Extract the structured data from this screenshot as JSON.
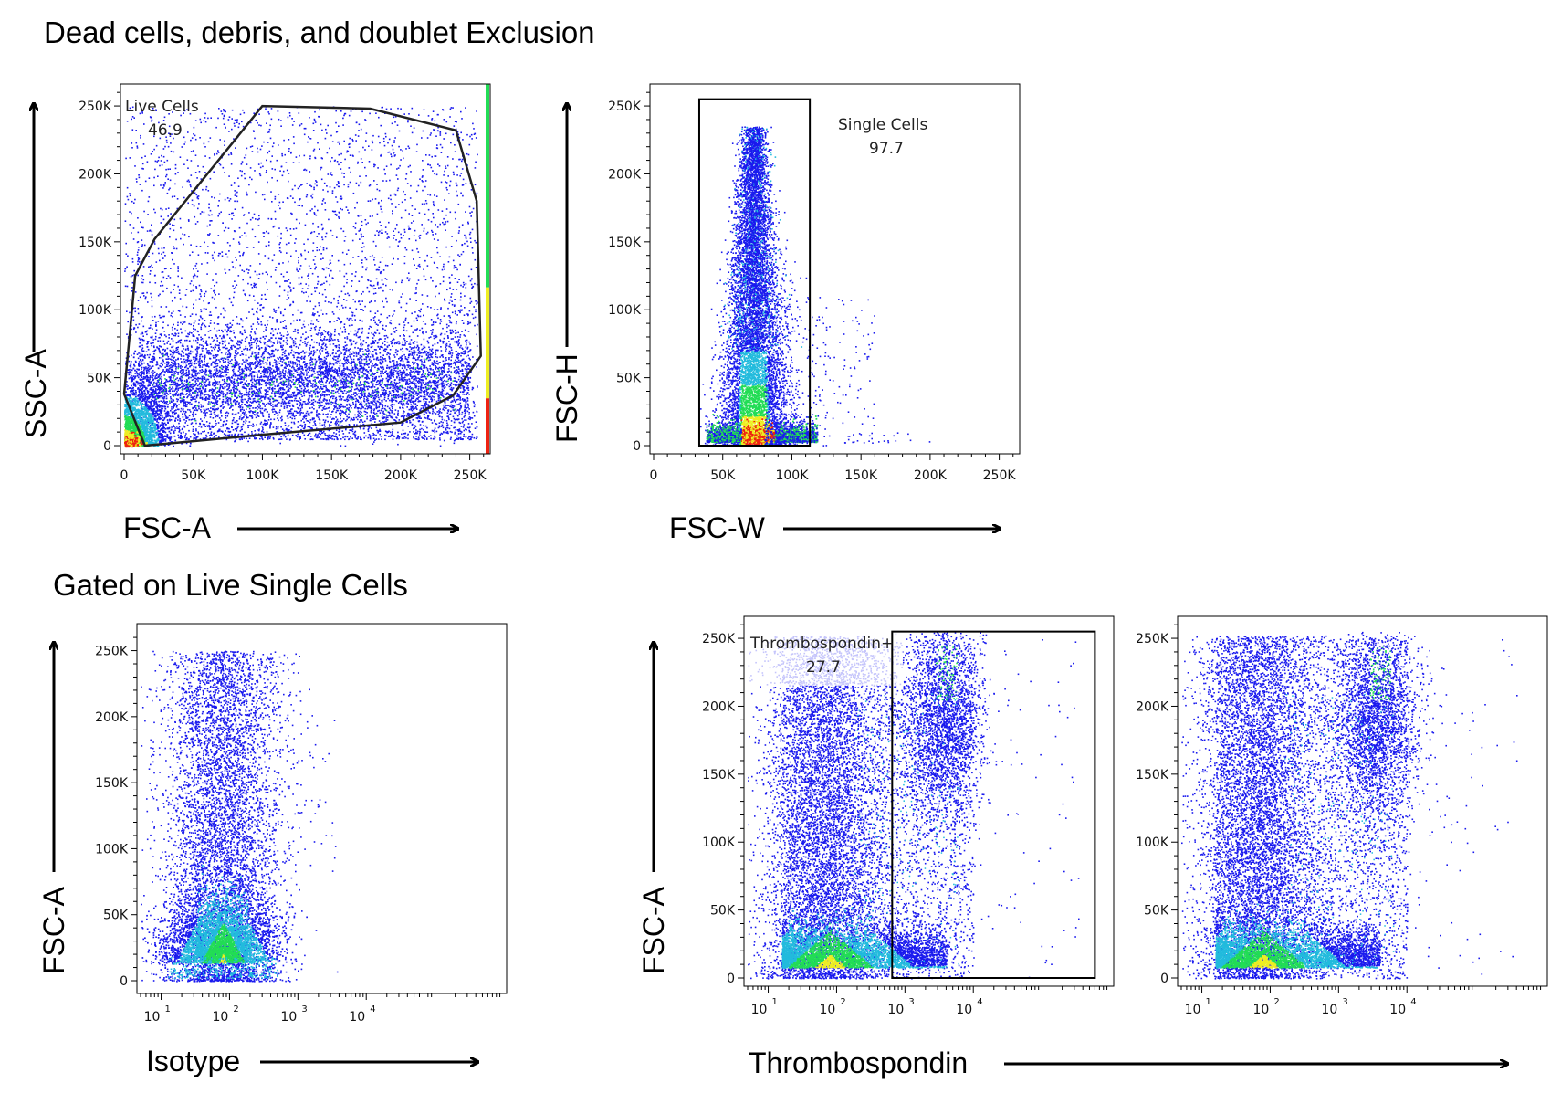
{
  "section_titles": {
    "top": "Dead cells, debris, and doublet Exclusion",
    "bottom": "Gated on Live Single Cells"
  },
  "chart_data": [
    {
      "id": "p1",
      "type": "scatter",
      "xlabel": "FSC-A",
      "ylabel": "SSC-A",
      "xscale": "linear",
      "yscale": "linear",
      "xlim": [
        0,
        262144
      ],
      "ylim": [
        0,
        262144
      ],
      "xticks": [
        0,
        50000,
        100000,
        150000,
        200000,
        250000
      ],
      "xticklabels": [
        "0",
        "50K",
        "100K",
        "150K",
        "200K",
        "250K"
      ],
      "yticks": [
        0,
        50000,
        100000,
        150000,
        200000,
        250000
      ],
      "yticklabels": [
        "0",
        "50K",
        "100K",
        "150K",
        "200K",
        "250K"
      ],
      "gate": {
        "name": "Live Cells",
        "value": "46.9",
        "shape": "polygon",
        "points": [
          [
            0,
            38000
          ],
          [
            8000,
            125000
          ],
          [
            22000,
            152000
          ],
          [
            100000,
            250000
          ],
          [
            178000,
            248000
          ],
          [
            240000,
            232000
          ],
          [
            255000,
            180000
          ],
          [
            258000,
            66000
          ],
          [
            238000,
            37000
          ],
          [
            200000,
            17000
          ],
          [
            100000,
            8000
          ],
          [
            15000,
            0
          ]
        ]
      },
      "density_axis_marks": "green-red band at right edge",
      "grid": false
    },
    {
      "id": "p2",
      "type": "scatter",
      "xlabel": "FSC-W",
      "ylabel": "FSC-H",
      "xscale": "linear",
      "yscale": "linear",
      "xlim": [
        0,
        262144
      ],
      "ylim": [
        0,
        262144
      ],
      "xticks": [
        0,
        50000,
        100000,
        150000,
        200000,
        250000
      ],
      "xticklabels": [
        "0",
        "50K",
        "100K",
        "150K",
        "200K",
        "250K"
      ],
      "yticks": [
        0,
        50000,
        100000,
        150000,
        200000,
        250000
      ],
      "yticklabels": [
        "0",
        "50K",
        "100K",
        "150K",
        "200K",
        "250K"
      ],
      "gate": {
        "name": "Single Cells",
        "value": "97.7",
        "shape": "rectangle",
        "x": [
          33000,
          113000
        ],
        "y": [
          0,
          255000
        ]
      },
      "grid": false
    },
    {
      "id": "p3",
      "type": "scatter",
      "xlabel": "Isotype",
      "ylabel": "FSC-A",
      "xscale": "log",
      "yscale": "linear",
      "xlim": [
        5,
        1000000
      ],
      "ylim": [
        0,
        262144
      ],
      "xticks": [
        10,
        100,
        1000,
        10000
      ],
      "xticklabels": [
        "10^1",
        "10^2",
        "10^3",
        "10^4"
      ],
      "yticks": [
        0,
        50000,
        100000,
        150000,
        200000,
        250000
      ],
      "yticklabels": [
        "0",
        "50K",
        "100K",
        "150K",
        "200K",
        "250K"
      ],
      "grid": false
    },
    {
      "id": "p4",
      "type": "scatter",
      "xlabel": "Thrombospondin",
      "ylabel": "FSC-A",
      "xscale": "log",
      "yscale": "linear",
      "xlim": [
        5,
        1000000
      ],
      "ylim": [
        0,
        262144
      ],
      "xticks": [
        10,
        100,
        1000,
        10000
      ],
      "xticklabels": [
        "10^1",
        "10^2",
        "10^3",
        "10^4"
      ],
      "yticks": [
        0,
        50000,
        100000,
        150000,
        200000,
        250000
      ],
      "yticklabels": [
        "0",
        "50K",
        "100K",
        "150K",
        "200K",
        "250K"
      ],
      "gate": {
        "name": "Thrombospondin+",
        "value": "27.7",
        "shape": "rectangle",
        "x": [
          650,
          600000
        ],
        "y": [
          0,
          255000
        ]
      },
      "grid": false
    },
    {
      "id": "p5",
      "type": "scatter",
      "xlabel": "",
      "ylabel": "",
      "xscale": "log",
      "yscale": "linear",
      "xlim": [
        5,
        1000000
      ],
      "ylim": [
        0,
        262144
      ],
      "xticks": [
        10,
        100,
        1000,
        10000
      ],
      "xticklabels": [
        "10^1",
        "10^2",
        "10^3",
        "10^4"
      ],
      "yticks": [
        0,
        50000,
        100000,
        150000,
        200000,
        250000
      ],
      "yticklabels": [
        "0",
        "50K",
        "100K",
        "150K",
        "200K",
        "250K"
      ],
      "grid": false
    }
  ],
  "palette": {
    "sparse": "#1a1aee",
    "low": "#22bbdd",
    "mid": "#22dd55",
    "high": "#eeee22",
    "peak": "#ee2211"
  }
}
